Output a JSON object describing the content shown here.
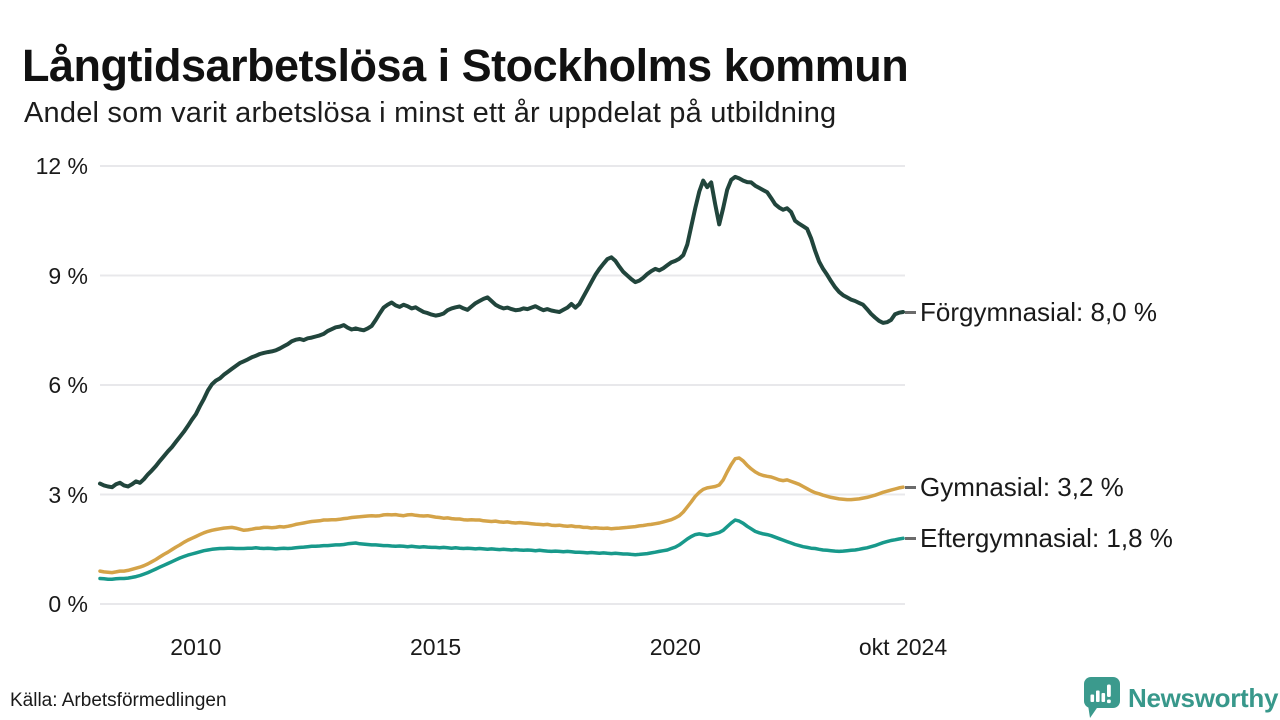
{
  "title": "Långtidsarbetslösa i Stockholms kommun",
  "subtitle": "Andel som varit arbetslösa i minst ett år uppdelat på utbildning",
  "source": "Källa: Arbetsförmedlingen",
  "logo": {
    "text": "Newsworthy",
    "color": "#3b9a8d"
  },
  "chart_data": {
    "type": "line",
    "x_start": "jan 2008",
    "x_end": "okt 2024",
    "xtick_labels": [
      "2010",
      "2015",
      "2020",
      "okt 2024"
    ],
    "xtick_years": [
      2010,
      2015,
      2020,
      2024.75
    ],
    "x_range_years": [
      2008,
      2024.75
    ],
    "ytick_labels": [
      "12 %",
      "9 %",
      "6 %",
      "3 %",
      "0 %"
    ],
    "yticks": [
      12,
      9,
      6,
      3,
      0
    ],
    "ylim": [
      0,
      12
    ],
    "grid_color": "#e8e8eb",
    "connector_color": "#6b6b6b",
    "points_per_series": 202,
    "series": [
      {
        "name": "Förgymnasial",
        "label": "Förgymnasial: 8,0 %",
        "end_value": 8.0,
        "color": "#21453c",
        "stroke_width": 4,
        "values": [
          3.3,
          3.25,
          3.22,
          3.2,
          3.28,
          3.32,
          3.25,
          3.22,
          3.28,
          3.36,
          3.32,
          3.42,
          3.55,
          3.66,
          3.78,
          3.92,
          4.05,
          4.18,
          4.3,
          4.44,
          4.58,
          4.72,
          4.88,
          5.05,
          5.2,
          5.42,
          5.62,
          5.85,
          6.02,
          6.12,
          6.18,
          6.28,
          6.36,
          6.44,
          6.52,
          6.6,
          6.65,
          6.7,
          6.76,
          6.8,
          6.85,
          6.88,
          6.9,
          6.92,
          6.95,
          7.0,
          7.06,
          7.12,
          7.2,
          7.24,
          7.26,
          7.23,
          7.28,
          7.3,
          7.33,
          7.36,
          7.4,
          7.48,
          7.53,
          7.58,
          7.6,
          7.64,
          7.57,
          7.52,
          7.55,
          7.52,
          7.5,
          7.55,
          7.62,
          7.78,
          7.96,
          8.12,
          8.2,
          8.26,
          8.18,
          8.14,
          8.2,
          8.16,
          8.1,
          8.13,
          8.06,
          8.0,
          7.97,
          7.93,
          7.9,
          7.92,
          7.96,
          8.05,
          8.1,
          8.13,
          8.15,
          8.1,
          8.06,
          8.15,
          8.24,
          8.3,
          8.36,
          8.4,
          8.3,
          8.2,
          8.14,
          8.1,
          8.12,
          8.08,
          8.05,
          8.06,
          8.1,
          8.08,
          8.12,
          8.16,
          8.1,
          8.05,
          8.08,
          8.04,
          8.02,
          8.0,
          8.06,
          8.12,
          8.22,
          8.12,
          8.22,
          8.42,
          8.62,
          8.82,
          9.02,
          9.18,
          9.32,
          9.45,
          9.5,
          9.4,
          9.24,
          9.1,
          9.0,
          8.9,
          8.82,
          8.86,
          8.94,
          9.04,
          9.12,
          9.18,
          9.14,
          9.2,
          9.28,
          9.36,
          9.4,
          9.46,
          9.56,
          9.85,
          10.35,
          10.85,
          11.3,
          11.6,
          11.42,
          11.55,
          10.95,
          10.4,
          10.85,
          11.35,
          11.62,
          11.7,
          11.66,
          11.6,
          11.56,
          11.55,
          11.46,
          11.4,
          11.34,
          11.28,
          11.12,
          10.95,
          10.86,
          10.8,
          10.84,
          10.74,
          10.5,
          10.42,
          10.35,
          10.28,
          10.02,
          9.68,
          9.38,
          9.18,
          9.02,
          8.84,
          8.68,
          8.55,
          8.46,
          8.4,
          8.34,
          8.3,
          8.25,
          8.2,
          8.08,
          7.95,
          7.85,
          7.76,
          7.7,
          7.72,
          7.78,
          7.94,
          7.98,
          8.0
        ]
      },
      {
        "name": "Gymnasial",
        "label": "Gymnasial: 3,2 %",
        "end_value": 3.2,
        "color": "#d4a348",
        "stroke_width": 3.5,
        "values": [
          0.9,
          0.88,
          0.87,
          0.86,
          0.88,
          0.9,
          0.9,
          0.92,
          0.95,
          0.98,
          1.01,
          1.05,
          1.1,
          1.16,
          1.22,
          1.29,
          1.36,
          1.42,
          1.49,
          1.56,
          1.62,
          1.69,
          1.75,
          1.8,
          1.85,
          1.9,
          1.95,
          1.99,
          2.02,
          2.04,
          2.06,
          2.08,
          2.09,
          2.1,
          2.08,
          2.05,
          2.02,
          2.03,
          2.05,
          2.07,
          2.08,
          2.1,
          2.1,
          2.09,
          2.1,
          2.12,
          2.11,
          2.13,
          2.15,
          2.18,
          2.2,
          2.22,
          2.24,
          2.26,
          2.27,
          2.28,
          2.3,
          2.3,
          2.31,
          2.31,
          2.32,
          2.34,
          2.35,
          2.37,
          2.38,
          2.39,
          2.4,
          2.41,
          2.42,
          2.41,
          2.42,
          2.44,
          2.45,
          2.44,
          2.45,
          2.43,
          2.42,
          2.44,
          2.45,
          2.43,
          2.42,
          2.41,
          2.42,
          2.4,
          2.38,
          2.37,
          2.35,
          2.36,
          2.34,
          2.33,
          2.33,
          2.31,
          2.3,
          2.31,
          2.3,
          2.3,
          2.28,
          2.27,
          2.26,
          2.27,
          2.25,
          2.24,
          2.25,
          2.23,
          2.22,
          2.23,
          2.22,
          2.21,
          2.2,
          2.19,
          2.18,
          2.17,
          2.18,
          2.16,
          2.15,
          2.16,
          2.14,
          2.13,
          2.14,
          2.12,
          2.12,
          2.1,
          2.1,
          2.08,
          2.09,
          2.08,
          2.07,
          2.08,
          2.06,
          2.07,
          2.08,
          2.09,
          2.1,
          2.11,
          2.12,
          2.14,
          2.15,
          2.17,
          2.18,
          2.2,
          2.22,
          2.25,
          2.28,
          2.31,
          2.36,
          2.42,
          2.52,
          2.66,
          2.8,
          2.95,
          3.06,
          3.14,
          3.18,
          3.2,
          3.22,
          3.26,
          3.4,
          3.62,
          3.82,
          3.98,
          4.0,
          3.92,
          3.8,
          3.7,
          3.62,
          3.56,
          3.52,
          3.5,
          3.48,
          3.44,
          3.4,
          3.38,
          3.4,
          3.36,
          3.32,
          3.28,
          3.22,
          3.16,
          3.1,
          3.05,
          3.02,
          2.98,
          2.95,
          2.92,
          2.9,
          2.88,
          2.87,
          2.86,
          2.86,
          2.87,
          2.88,
          2.9,
          2.92,
          2.95,
          2.98,
          3.02,
          3.06,
          3.09,
          3.12,
          3.15,
          3.18,
          3.2
        ]
      },
      {
        "name": "Eftergymnasial",
        "label": "Eftergymnasial: 1,8 %",
        "end_value": 1.8,
        "color": "#18998b",
        "stroke_width": 3.5,
        "values": [
          0.7,
          0.69,
          0.68,
          0.68,
          0.69,
          0.7,
          0.7,
          0.71,
          0.73,
          0.75,
          0.78,
          0.82,
          0.86,
          0.91,
          0.96,
          1.01,
          1.06,
          1.11,
          1.16,
          1.21,
          1.26,
          1.3,
          1.34,
          1.37,
          1.4,
          1.43,
          1.46,
          1.48,
          1.5,
          1.51,
          1.52,
          1.52,
          1.53,
          1.53,
          1.52,
          1.52,
          1.52,
          1.53,
          1.53,
          1.54,
          1.53,
          1.52,
          1.53,
          1.52,
          1.51,
          1.52,
          1.53,
          1.52,
          1.53,
          1.54,
          1.55,
          1.56,
          1.57,
          1.58,
          1.58,
          1.59,
          1.6,
          1.6,
          1.61,
          1.62,
          1.62,
          1.63,
          1.65,
          1.66,
          1.67,
          1.65,
          1.64,
          1.63,
          1.62,
          1.62,
          1.61,
          1.6,
          1.6,
          1.59,
          1.58,
          1.59,
          1.58,
          1.57,
          1.58,
          1.57,
          1.56,
          1.57,
          1.56,
          1.55,
          1.55,
          1.54,
          1.55,
          1.54,
          1.53,
          1.54,
          1.53,
          1.52,
          1.53,
          1.52,
          1.51,
          1.52,
          1.51,
          1.5,
          1.51,
          1.5,
          1.49,
          1.5,
          1.49,
          1.48,
          1.49,
          1.48,
          1.47,
          1.48,
          1.47,
          1.46,
          1.47,
          1.46,
          1.45,
          1.44,
          1.45,
          1.44,
          1.43,
          1.44,
          1.43,
          1.42,
          1.42,
          1.41,
          1.4,
          1.41,
          1.4,
          1.39,
          1.4,
          1.39,
          1.38,
          1.39,
          1.38,
          1.37,
          1.37,
          1.36,
          1.35,
          1.36,
          1.37,
          1.38,
          1.4,
          1.42,
          1.44,
          1.46,
          1.48,
          1.52,
          1.56,
          1.62,
          1.7,
          1.78,
          1.85,
          1.9,
          1.92,
          1.9,
          1.88,
          1.9,
          1.93,
          1.96,
          2.02,
          2.12,
          2.22,
          2.3,
          2.27,
          2.21,
          2.13,
          2.06,
          1.99,
          1.95,
          1.92,
          1.9,
          1.87,
          1.83,
          1.79,
          1.75,
          1.71,
          1.67,
          1.63,
          1.6,
          1.57,
          1.55,
          1.53,
          1.52,
          1.5,
          1.48,
          1.47,
          1.46,
          1.45,
          1.44,
          1.45,
          1.46,
          1.47,
          1.48,
          1.5,
          1.52,
          1.54,
          1.57,
          1.6,
          1.64,
          1.68,
          1.71,
          1.74,
          1.76,
          1.78,
          1.8
        ]
      }
    ]
  }
}
